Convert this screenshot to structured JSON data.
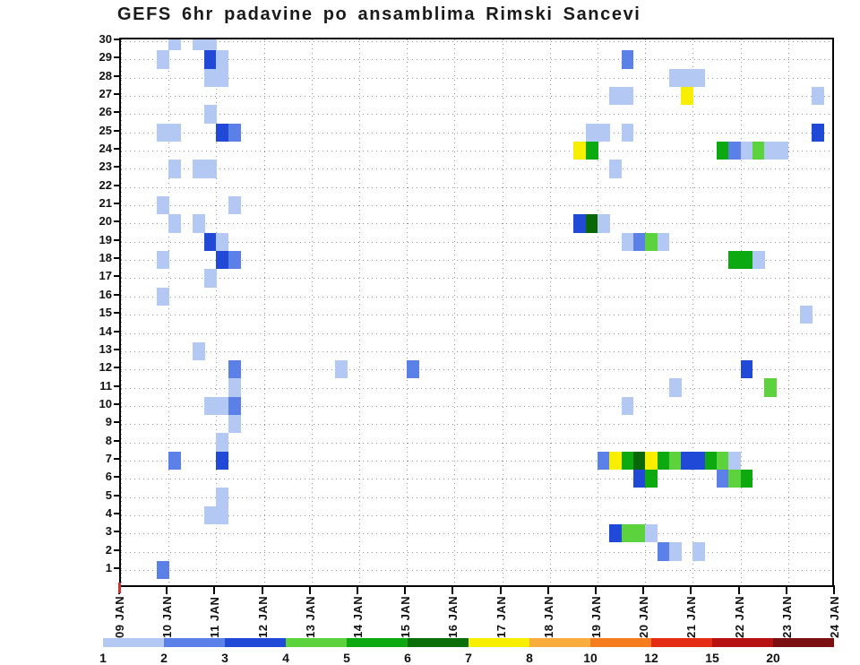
{
  "title": "GEFS 6hr padavine po ansamblima Rimski Sancevi",
  "y_axis": {
    "labels": [
      "30",
      "29",
      "28",
      "27",
      "26",
      "25",
      "24",
      "23",
      "22",
      "21",
      "20",
      "19",
      "18",
      "17",
      "16",
      "15",
      "14",
      "13",
      "12",
      "11",
      "10",
      "9",
      "8",
      "7",
      "6",
      "5",
      "4",
      "3",
      "2",
      "1"
    ]
  },
  "x_axis": {
    "labels": [
      "09 JAN",
      "10 JAN",
      "11 JAN",
      "12 JAN",
      "13 JAN",
      "14 JAN",
      "15 JAN",
      "16 JAN",
      "17 JAN",
      "18 JAN",
      "19 JAN",
      "20 JAN",
      "21 JAN",
      "22 JAN",
      "23 JAN",
      "24 JAN"
    ]
  },
  "legend": {
    "labels": [
      "1",
      "2",
      "3",
      "4",
      "5",
      "6",
      "7",
      "8",
      "10",
      "12",
      "15",
      "20"
    ],
    "colors": [
      "#b3c8f2",
      "#5b80e8",
      "#2049d8",
      "#5cd23c",
      "#0caa10",
      "#0b6e0b",
      "#f8ee00",
      "#f9ad3c",
      "#f57d1e",
      "#e52c15",
      "#b51211",
      "#7a1011"
    ]
  },
  "palette": {
    "1": "#b3c8f2",
    "2": "#5b80e8",
    "3": "#2049d8",
    "4": "#5cd23c",
    "5": "#0caa10",
    "6": "#086808",
    "7": "#f8ee00"
  },
  "chart_data": {
    "type": "heatmap",
    "title": "GEFS 6hr padavine po ansamblima Rimski Sancevi",
    "x_description": "time in 6-hour steps, step 0 starts 09 JAN, 4 steps per day, 09 JAN through 24 JAN",
    "x_tick_labels": [
      "09 JAN",
      "10 JAN",
      "11 JAN",
      "12 JAN",
      "13 JAN",
      "14 JAN",
      "15 JAN",
      "16 JAN",
      "17 JAN",
      "18 JAN",
      "19 JAN",
      "20 JAN",
      "21 JAN",
      "22 JAN",
      "23 JAN",
      "24 JAN"
    ],
    "y_description": "ensemble member number 1-30",
    "ylim": [
      1,
      30
    ],
    "grid": "dotted",
    "legend_position": "bottom colorbar",
    "levels_mm": {
      "1": "1-2",
      "2": "2-3",
      "3": "3-4",
      "4": "4-5",
      "5": "5-6",
      "6": "6-7",
      "7": "7-8"
    },
    "cells_format": [
      "member",
      "step_6hr_index_from_09JAN00",
      "precip_level"
    ],
    "cells": [
      [
        30,
        4,
        1
      ],
      [
        30,
        6,
        1
      ],
      [
        30,
        7,
        1
      ],
      [
        29,
        3,
        1
      ],
      [
        29,
        7,
        3
      ],
      [
        29,
        8,
        1
      ],
      [
        29,
        42,
        2
      ],
      [
        28,
        7,
        1
      ],
      [
        28,
        8,
        1
      ],
      [
        28,
        46,
        1
      ],
      [
        28,
        47,
        1
      ],
      [
        28,
        48,
        1
      ],
      [
        27,
        41,
        1
      ],
      [
        27,
        42,
        1
      ],
      [
        27,
        47,
        7
      ],
      [
        27,
        58,
        1
      ],
      [
        26,
        7,
        1
      ],
      [
        25,
        3,
        1
      ],
      [
        25,
        4,
        1
      ],
      [
        25,
        8,
        3
      ],
      [
        25,
        9,
        2
      ],
      [
        25,
        39,
        1
      ],
      [
        25,
        40,
        1
      ],
      [
        25,
        42,
        1
      ],
      [
        25,
        58,
        3
      ],
      [
        24,
        38,
        7
      ],
      [
        24,
        39,
        5
      ],
      [
        24,
        50,
        5
      ],
      [
        24,
        51,
        2
      ],
      [
        24,
        52,
        1
      ],
      [
        24,
        53,
        4
      ],
      [
        24,
        54,
        1
      ],
      [
        24,
        55,
        1
      ],
      [
        23,
        4,
        1
      ],
      [
        23,
        6,
        1
      ],
      [
        23,
        7,
        1
      ],
      [
        23,
        41,
        1
      ],
      [
        21,
        3,
        1
      ],
      [
        21,
        9,
        1
      ],
      [
        20,
        4,
        1
      ],
      [
        20,
        6,
        1
      ],
      [
        20,
        38,
        3
      ],
      [
        20,
        39,
        6
      ],
      [
        20,
        40,
        1
      ],
      [
        19,
        7,
        3
      ],
      [
        19,
        8,
        1
      ],
      [
        19,
        42,
        1
      ],
      [
        19,
        43,
        2
      ],
      [
        19,
        44,
        4
      ],
      [
        19,
        45,
        1
      ],
      [
        18,
        3,
        1
      ],
      [
        18,
        8,
        3
      ],
      [
        18,
        9,
        2
      ],
      [
        18,
        51,
        5
      ],
      [
        18,
        52,
        5
      ],
      [
        18,
        53,
        1
      ],
      [
        17,
        7,
        1
      ],
      [
        16,
        3,
        1
      ],
      [
        15,
        57,
        1
      ],
      [
        13,
        6,
        1
      ],
      [
        12,
        9,
        2
      ],
      [
        12,
        18,
        1
      ],
      [
        12,
        24,
        2
      ],
      [
        12,
        52,
        3
      ],
      [
        11,
        9,
        1
      ],
      [
        11,
        46,
        1
      ],
      [
        11,
        54,
        4
      ],
      [
        10,
        7,
        1
      ],
      [
        10,
        8,
        1
      ],
      [
        10,
        9,
        2
      ],
      [
        10,
        42,
        1
      ],
      [
        9,
        9,
        1
      ],
      [
        8,
        8,
        1
      ],
      [
        7,
        4,
        2
      ],
      [
        7,
        8,
        3
      ],
      [
        7,
        40,
        2
      ],
      [
        7,
        41,
        7
      ],
      [
        7,
        42,
        5
      ],
      [
        7,
        43,
        6
      ],
      [
        7,
        44,
        7
      ],
      [
        7,
        45,
        5
      ],
      [
        7,
        46,
        4
      ],
      [
        7,
        47,
        3
      ],
      [
        7,
        48,
        3
      ],
      [
        7,
        49,
        5
      ],
      [
        7,
        50,
        4
      ],
      [
        7,
        51,
        1
      ],
      [
        6,
        43,
        3
      ],
      [
        6,
        44,
        5
      ],
      [
        6,
        50,
        2
      ],
      [
        6,
        51,
        4
      ],
      [
        6,
        52,
        5
      ],
      [
        5,
        8,
        1
      ],
      [
        4,
        7,
        1
      ],
      [
        4,
        8,
        1
      ],
      [
        3,
        41,
        3
      ],
      [
        3,
        42,
        4
      ],
      [
        3,
        43,
        4
      ],
      [
        3,
        44,
        1
      ],
      [
        2,
        45,
        2
      ],
      [
        2,
        46,
        1
      ],
      [
        2,
        48,
        1
      ],
      [
        1,
        3,
        2
      ]
    ]
  }
}
